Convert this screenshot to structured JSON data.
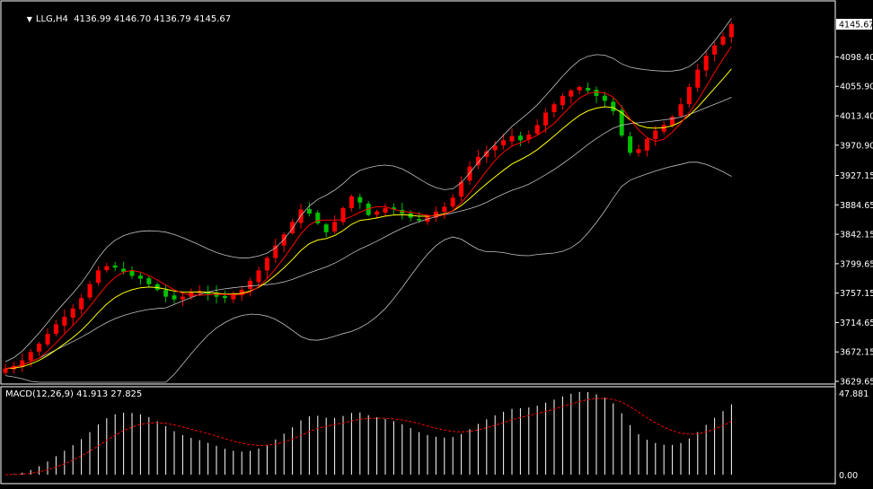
{
  "header": {
    "symbol": "LLG,H4",
    "ohlc": "4136.99 4146.70 4136.79 4145.67"
  },
  "price_axis": {
    "ticks": [
      "4098.40",
      "4055.90",
      "4013.40",
      "3970.90",
      "3927.15",
      "3884.65",
      "3842.15",
      "3799.65",
      "3757.15",
      "3714.65",
      "3672.15",
      "3629.65"
    ],
    "current": "4145.67"
  },
  "macd": {
    "title": "MACD(12,26,9) 41.913 27.825",
    "top": "47.881",
    "bottom": "0.00"
  },
  "colors": {
    "background": "#000000",
    "bull": "#00c000",
    "bear": "#ff0000",
    "sma": "#ff0000",
    "ema": "#ffff00",
    "bands": "#c0c0c0",
    "signal": "#ff0000"
  },
  "chart_data": {
    "type": "candlestick",
    "price_range": [
      3629.65,
      4145.67
    ],
    "candles_close": [
      3648,
      3652,
      3660,
      3672,
      3684,
      3698,
      3712,
      3723,
      3735,
      3750,
      3770,
      3790,
      3796,
      3794,
      3788,
      3782,
      3778,
      3770,
      3762,
      3752,
      3748,
      3752,
      3758,
      3760,
      3756,
      3752,
      3750,
      3755,
      3762,
      3775,
      3790,
      3808,
      3826,
      3842,
      3860,
      3878,
      3872,
      3858,
      3845,
      3860,
      3880,
      3897,
      3888,
      3870,
      3875,
      3880,
      3878,
      3872,
      3866,
      3862,
      3868,
      3875,
      3882,
      3895,
      3918,
      3940,
      3954,
      3962,
      3970,
      3978,
      3984,
      3978,
      3986,
      4000,
      4018,
      4030,
      4042,
      4050,
      4055,
      4050,
      4042,
      4035,
      4020,
      3985,
      3960,
      3965,
      3980,
      3992,
      4000,
      4012,
      4030,
      4055,
      4080,
      4100,
      4115,
      4128,
      4145.67
    ]
  }
}
